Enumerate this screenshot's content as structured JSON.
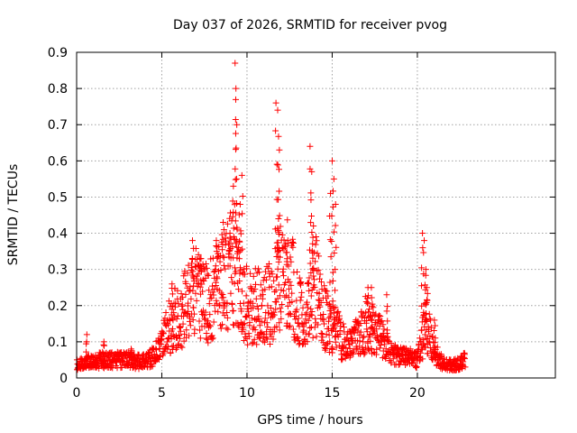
{
  "chart_data": {
    "type": "scatter",
    "title": "Day 037 of 2026, SRMTID for receiver pvog",
    "xlabel": "GPS time / hours",
    "ylabel": "SRMTID / TECUs",
    "xlim": [
      0,
      28.1
    ],
    "ylim": [
      0,
      0.9
    ],
    "xticks": [
      0,
      5,
      10,
      15,
      20
    ],
    "xtick_labels": [
      "0",
      "5",
      "10",
      "15",
      "20"
    ],
    "yticks": [
      0,
      0.1,
      0.2,
      0.3,
      0.4,
      0.5,
      0.6,
      0.7,
      0.8,
      0.9
    ],
    "ytick_labels": [
      "0",
      "0.1",
      "0.2",
      "0.3",
      "0.4",
      "0.5",
      "0.6",
      "0.7",
      "0.8",
      "0.9"
    ],
    "grid": true,
    "marker": "+",
    "color": "#ff0000",
    "x_range_of_data": [
      0,
      22.8
    ],
    "trend": [
      [
        0.0,
        0.035
      ],
      [
        0.5,
        0.04
      ],
      [
        1.0,
        0.045
      ],
      [
        1.5,
        0.05
      ],
      [
        2.0,
        0.05
      ],
      [
        2.5,
        0.05
      ],
      [
        3.0,
        0.05
      ],
      [
        3.5,
        0.045
      ],
      [
        4.0,
        0.045
      ],
      [
        4.5,
        0.06
      ],
      [
        5.0,
        0.09
      ],
      [
        5.5,
        0.15
      ],
      [
        6.0,
        0.17
      ],
      [
        6.5,
        0.2
      ],
      [
        7.0,
        0.24
      ],
      [
        7.5,
        0.2
      ],
      [
        8.0,
        0.22
      ],
      [
        8.5,
        0.27
      ],
      [
        9.0,
        0.3
      ],
      [
        9.5,
        0.27
      ],
      [
        10.0,
        0.2
      ],
      [
        10.5,
        0.2
      ],
      [
        11.0,
        0.21
      ],
      [
        11.5,
        0.2
      ],
      [
        12.0,
        0.3
      ],
      [
        12.5,
        0.28
      ],
      [
        13.0,
        0.2
      ],
      [
        13.5,
        0.17
      ],
      [
        14.0,
        0.27
      ],
      [
        14.5,
        0.17
      ],
      [
        15.0,
        0.14
      ],
      [
        15.5,
        0.11
      ],
      [
        16.0,
        0.09
      ],
      [
        16.5,
        0.11
      ],
      [
        17.0,
        0.15
      ],
      [
        17.5,
        0.13
      ],
      [
        18.0,
        0.1
      ],
      [
        18.5,
        0.07
      ],
      [
        19.0,
        0.06
      ],
      [
        19.5,
        0.06
      ],
      [
        20.0,
        0.05
      ],
      [
        20.5,
        0.15
      ],
      [
        21.0,
        0.07
      ],
      [
        21.5,
        0.04
      ],
      [
        22.0,
        0.035
      ],
      [
        22.5,
        0.04
      ],
      [
        22.8,
        0.05
      ]
    ],
    "spikes": [
      [
        0.6,
        0.12
      ],
      [
        1.6,
        0.1
      ],
      [
        3.2,
        0.08
      ],
      [
        5.6,
        0.26
      ],
      [
        6.8,
        0.38
      ],
      [
        7.3,
        0.33
      ],
      [
        8.2,
        0.38
      ],
      [
        8.6,
        0.43
      ],
      [
        9.0,
        0.4
      ],
      [
        9.2,
        0.53
      ],
      [
        9.3,
        0.87
      ],
      [
        9.35,
        0.8
      ],
      [
        9.4,
        0.7
      ],
      [
        9.6,
        0.48
      ],
      [
        9.7,
        0.56
      ],
      [
        11.7,
        0.76
      ],
      [
        11.8,
        0.74
      ],
      [
        11.9,
        0.63
      ],
      [
        11.85,
        0.44
      ],
      [
        12.4,
        0.38
      ],
      [
        13.7,
        0.64
      ],
      [
        13.8,
        0.57
      ],
      [
        13.9,
        0.42
      ],
      [
        15.0,
        0.6
      ],
      [
        15.1,
        0.55
      ],
      [
        14.9,
        0.51
      ],
      [
        15.2,
        0.48
      ],
      [
        17.1,
        0.25
      ],
      [
        17.3,
        0.25
      ],
      [
        18.2,
        0.23
      ],
      [
        20.3,
        0.4
      ],
      [
        20.4,
        0.38
      ],
      [
        20.5,
        0.3
      ],
      [
        20.55,
        0.25
      ],
      [
        21.0,
        0.16
      ]
    ]
  }
}
